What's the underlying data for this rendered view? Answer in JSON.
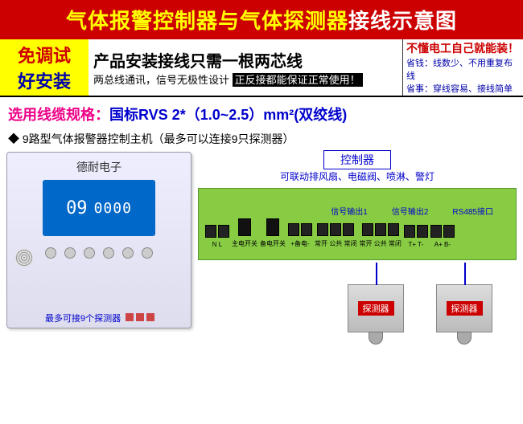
{
  "header": {
    "p1": "气体报警控制器与气体探测器",
    "p2": "接线示意图"
  },
  "row2": {
    "left1": "免调试",
    "left2": "好安装",
    "mid1": "产品安装接线只需一根两芯线",
    "mid2a": "两总线通讯，信号无极性设计 ",
    "mid2b": "正反接都能保证正常使用！",
    "r1": "不懂电工自己就能装！",
    "r2": "省钱：线数少、不用重复布线",
    "r3": "省事：穿线容易、接线简单"
  },
  "cable": {
    "a": "选用线缆规格：",
    "b": "国标RVS 2*（1.0~2.5）mm²(双绞线)"
  },
  "sub": "9路型气体报警器控制主机（最多可以连接9只探测器）",
  "device": {
    "brand": "德耐电子",
    "disp1": "09",
    "disp2": "0000"
  },
  "ctrl": {
    "title": "控制器",
    "sub": "可联动排风扇、电磁阀、喷淋、警灯",
    "top": [
      "信号输出1",
      "信号输出2",
      "RS485接口"
    ],
    "groups": [
      {
        "lbl": "",
        "terms": 2,
        "sub": "N  L",
        "type": "t"
      },
      {
        "lbl": "",
        "terms": 1,
        "sub": "主电开关",
        "type": "s"
      },
      {
        "lbl": "",
        "terms": 1,
        "sub": "备电开关",
        "type": "s"
      },
      {
        "lbl": "",
        "terms": 2,
        "sub": "+备电-",
        "type": "t"
      },
      {
        "lbl": "",
        "terms": 3,
        "sub": "常开 公共 常闭",
        "type": "t"
      },
      {
        "lbl": "",
        "terms": 3,
        "sub": "常开 公共 常闭",
        "type": "t"
      },
      {
        "lbl": "",
        "terms": 2,
        "sub": "T+ T-",
        "type": "t"
      },
      {
        "lbl": "",
        "terms": 2,
        "sub": "A+ B-",
        "type": "t"
      }
    ]
  },
  "sensor": {
    "label": "探测器",
    "maxnote": "最多可接9个探测器"
  },
  "colors": {
    "red": "#c00",
    "yellow": "#ff0",
    "blue": "#00c",
    "green": "#8c4",
    "pink": "#e08"
  }
}
